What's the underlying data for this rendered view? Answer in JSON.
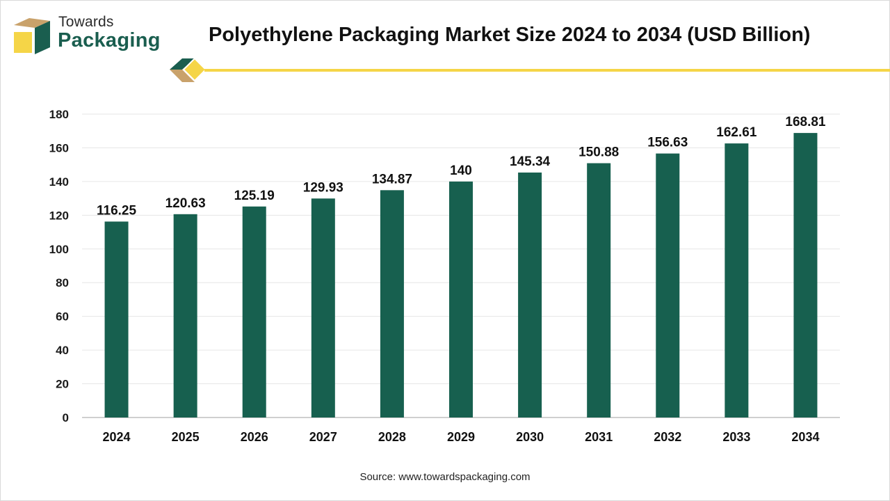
{
  "brand": {
    "line1": "Towards",
    "line2": "Packaging"
  },
  "title": "Polyethylene Packaging Market Size 2024 to 2034 (USD Billion)",
  "source": "Source: www.towardspackaging.com",
  "colors": {
    "bar": "#17604f",
    "accent_yellow": "#f5d547",
    "brand_green": "#1a5e4f",
    "brand_tan": "#c9a26b",
    "grid": "#e6e6e6"
  },
  "chart_data": {
    "type": "bar",
    "title": "Polyethylene Packaging Market Size 2024 to 2034 (USD Billion)",
    "categories": [
      "2024",
      "2025",
      "2026",
      "2027",
      "2028",
      "2029",
      "2030",
      "2031",
      "2032",
      "2033",
      "2034"
    ],
    "values": [
      116.25,
      120.63,
      125.19,
      129.93,
      134.87,
      140,
      145.34,
      150.88,
      156.63,
      162.61,
      168.81
    ],
    "value_labels": [
      "116.25",
      "120.63",
      "125.19",
      "129.93",
      "134.87",
      "140",
      "145.34",
      "150.88",
      "156.63",
      "162.61",
      "168.81"
    ],
    "xlabel": "",
    "ylabel": "",
    "ylim": [
      0,
      180
    ],
    "yticks": [
      0,
      20,
      40,
      60,
      80,
      100,
      120,
      140,
      160,
      180
    ],
    "grid": true,
    "legend": "none"
  }
}
